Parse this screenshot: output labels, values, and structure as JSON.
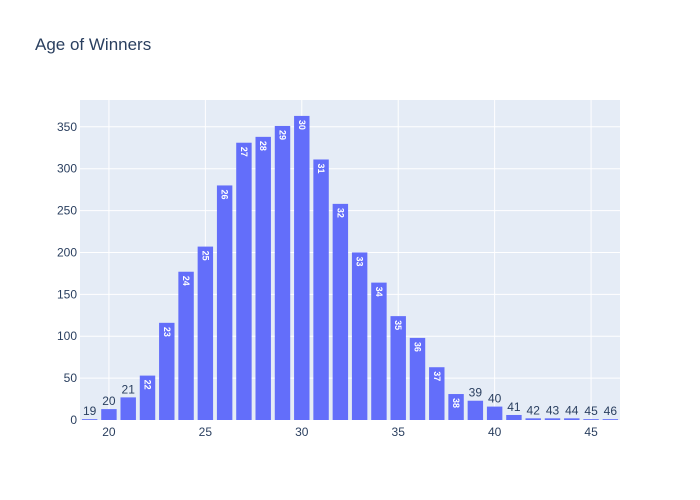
{
  "chart_data": {
    "type": "bar",
    "title": "Age of Winners",
    "xlabel": "",
    "ylabel": "",
    "categories": [
      19,
      20,
      21,
      22,
      23,
      24,
      25,
      26,
      27,
      28,
      29,
      30,
      31,
      32,
      33,
      34,
      35,
      36,
      37,
      38,
      39,
      40,
      41,
      42,
      43,
      44,
      45,
      46
    ],
    "values": [
      1,
      13,
      27,
      53,
      116,
      177,
      207,
      280,
      331,
      338,
      351,
      363,
      311,
      258,
      200,
      164,
      124,
      98,
      63,
      31,
      23,
      16,
      6,
      2,
      2,
      2,
      1,
      1
    ],
    "data_labels": [
      "19",
      "20",
      "21",
      "22",
      "23",
      "24",
      "25",
      "26",
      "27",
      "28",
      "29",
      "30",
      "31",
      "32",
      "33",
      "34",
      "35",
      "36",
      "37",
      "38",
      "39",
      "40",
      "41",
      "42",
      "43",
      "44",
      "45",
      "46"
    ],
    "xlim": [
      18.5,
      46.5
    ],
    "ylim": [
      0,
      382
    ],
    "x_ticks": [
      20,
      25,
      30,
      35,
      40,
      45
    ],
    "x_tick_labels": [
      "20",
      "25",
      "30",
      "35",
      "40",
      "45"
    ],
    "y_ticks": [
      0,
      50,
      100,
      150,
      200,
      250,
      300,
      350
    ],
    "y_tick_labels": [
      "0",
      "50",
      "100",
      "150",
      "200",
      "250",
      "300",
      "350"
    ],
    "grid": true,
    "colors": {
      "bar": "#636efa",
      "plot_background": "#e5ecf6",
      "grid": "#ffffff",
      "text": "#2a3f5f"
    }
  }
}
